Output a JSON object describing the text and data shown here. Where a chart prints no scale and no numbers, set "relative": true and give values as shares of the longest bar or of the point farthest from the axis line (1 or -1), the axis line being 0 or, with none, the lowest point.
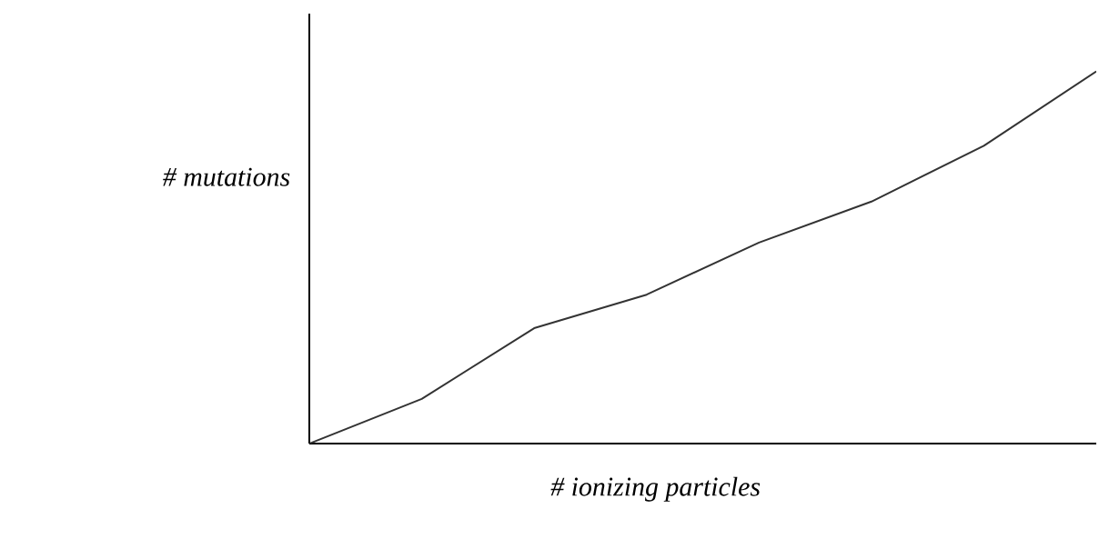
{
  "chart_data": {
    "type": "line",
    "relative": true,
    "xlabel": "# ionizing particles",
    "ylabel": "# mutations",
    "categories": [
      null,
      null,
      null,
      null,
      null,
      null,
      null,
      null
    ],
    "values": [
      0,
      0.12,
      0.31,
      0.4,
      0.54,
      0.65,
      0.8,
      1.0
    ],
    "color": "#333333",
    "grid": false
  }
}
